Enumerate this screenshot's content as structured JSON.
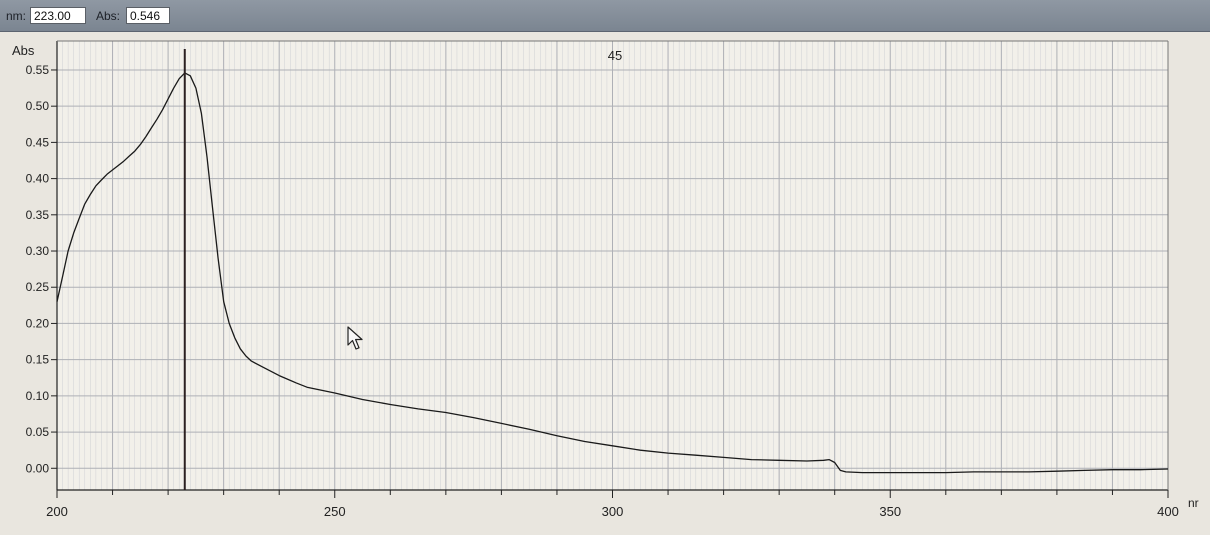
{
  "readout": {
    "nm_label": "nm:",
    "nm_value": "223.00",
    "abs_label": "Abs:",
    "abs_value": "0.546"
  },
  "chart_data": {
    "type": "line",
    "title": "45",
    "ylabel": "Abs",
    "xlabel": "nr",
    "xlim": [
      200,
      400
    ],
    "ylim": [
      -0.03,
      0.59
    ],
    "x_ticks": [
      "200",
      "250",
      "300",
      "350",
      "400"
    ],
    "y_ticks": [
      "0.00",
      "0.05",
      "0.10",
      "0.15",
      "0.20",
      "0.25",
      "0.30",
      "0.35",
      "0.40",
      "0.45",
      "0.50",
      "0.55"
    ],
    "grid": true,
    "marker_x": 223,
    "colors": {
      "line": "#1a1a1a",
      "grid": "#aeb0b6",
      "plot_bg": "#f2f0ea"
    },
    "series": [
      {
        "x": [
          200,
          201,
          202,
          203,
          204,
          205,
          206,
          207,
          208,
          209,
          210,
          211,
          212,
          213,
          214,
          215,
          216,
          217,
          218,
          219,
          220,
          221,
          222,
          223,
          224,
          225,
          226,
          227,
          228,
          229,
          230,
          231,
          232,
          233,
          234,
          235,
          237,
          240,
          243,
          245,
          250,
          255,
          260,
          265,
          270,
          275,
          280,
          285,
          290,
          295,
          300,
          305,
          310,
          315,
          320,
          325,
          330,
          335,
          338,
          339,
          340,
          341,
          342,
          345,
          350,
          355,
          360,
          365,
          370,
          375,
          380,
          385,
          390,
          395,
          400
        ],
        "y": [
          0.23,
          0.265,
          0.3,
          0.325,
          0.345,
          0.365,
          0.378,
          0.39,
          0.398,
          0.406,
          0.412,
          0.418,
          0.424,
          0.431,
          0.438,
          0.447,
          0.458,
          0.47,
          0.482,
          0.495,
          0.51,
          0.525,
          0.538,
          0.546,
          0.542,
          0.525,
          0.49,
          0.43,
          0.36,
          0.29,
          0.23,
          0.2,
          0.18,
          0.165,
          0.155,
          0.148,
          0.14,
          0.128,
          0.118,
          0.112,
          0.104,
          0.095,
          0.088,
          0.082,
          0.077,
          0.07,
          0.062,
          0.054,
          0.045,
          0.037,
          0.031,
          0.025,
          0.021,
          0.018,
          0.015,
          0.012,
          0.011,
          0.01,
          0.011,
          0.012,
          0.008,
          -0.003,
          -0.005,
          -0.006,
          -0.006,
          -0.006,
          -0.006,
          -0.005,
          -0.005,
          -0.005,
          -0.004,
          -0.003,
          -0.002,
          -0.002,
          -0.001
        ]
      }
    ]
  }
}
